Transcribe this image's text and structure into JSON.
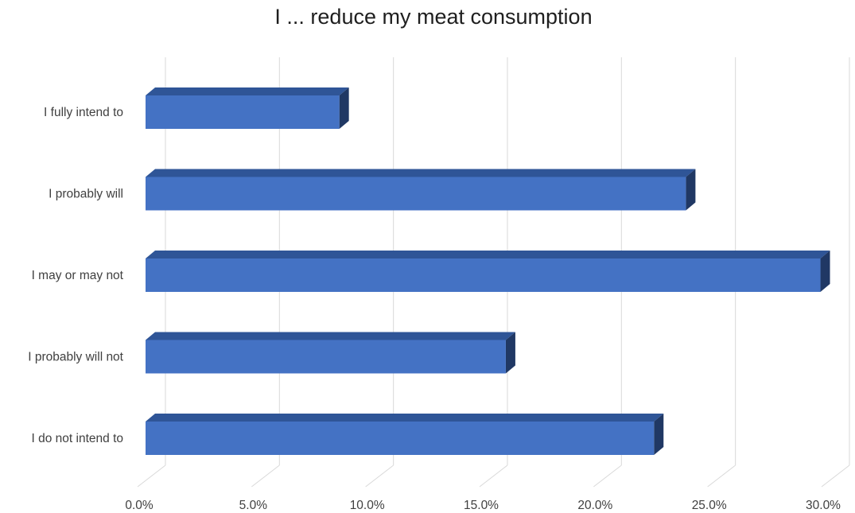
{
  "chart_data": {
    "type": "bar",
    "orientation": "horizontal",
    "style": "3d",
    "title": "I ... reduce my meat consumption",
    "xlabel": "",
    "ylabel": "",
    "categories": [
      "I fully intend to",
      "I probably will",
      "I may or may not",
      "I probably will not",
      "I do not intend to"
    ],
    "values": [
      8.5,
      23.7,
      29.6,
      15.8,
      22.3
    ],
    "value_unit": "%",
    "xlim": [
      0,
      30
    ],
    "x_ticks": [
      "0.0%",
      "5.0%",
      "10.0%",
      "15.0%",
      "20.0%",
      "25.0%",
      "30.0%"
    ],
    "grid": "vertical",
    "legend": "none",
    "colors": {
      "bar_front": "#4472c4",
      "bar_top": "#2f5597",
      "bar_side": "#203864",
      "gridline": "#d9d9d9",
      "text": "#404040"
    }
  }
}
